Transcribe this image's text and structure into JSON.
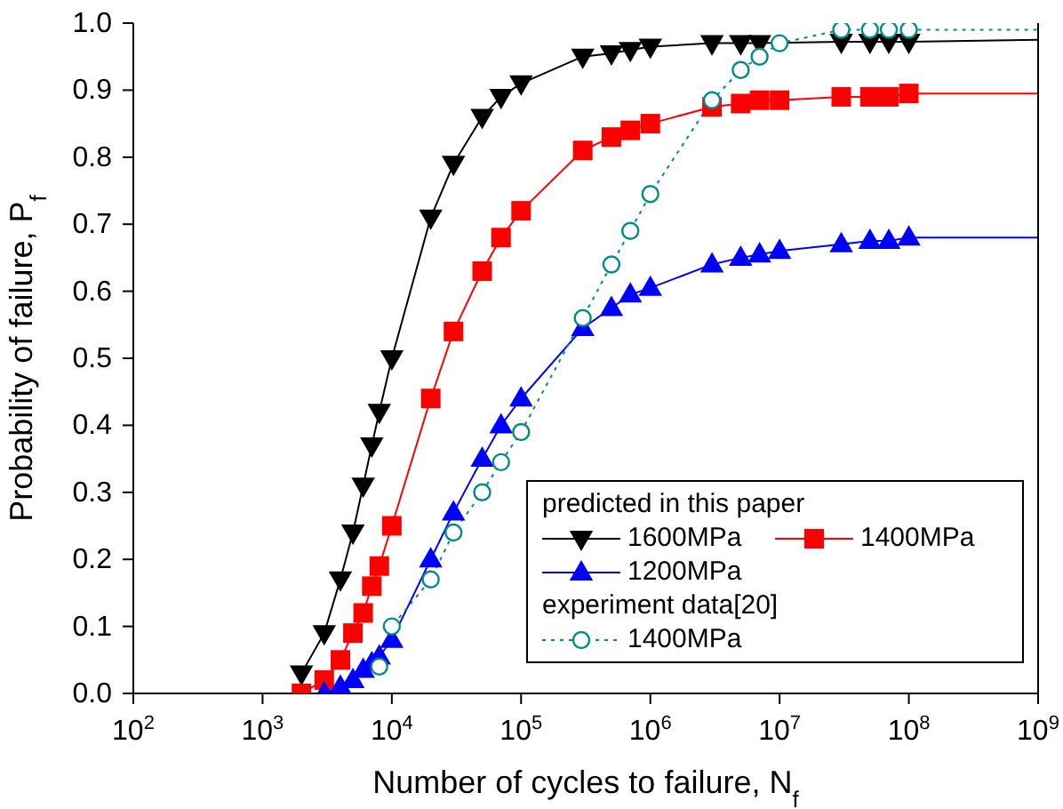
{
  "chart_data": {
    "type": "line",
    "xlabel": "Number of cycles to failure, N$_{f}$",
    "ylabel": "Probability of failure, P$_{f}$",
    "log": "x",
    "xlim": [
      100,
      1000000000
    ],
    "xticks": [
      {
        "value": 100,
        "label": "10$^{2}$"
      },
      {
        "value": 1000,
        "label": "10$^{3}$"
      },
      {
        "value": 10000,
        "label": "10$^{4}$"
      },
      {
        "value": 100000,
        "label": "10$^{5}$"
      },
      {
        "value": 1000000,
        "label": "10$^{6}$"
      },
      {
        "value": 10000000,
        "label": "10$^{7}$"
      },
      {
        "value": 100000000,
        "label": "10$^{8}$"
      },
      {
        "value": 1000000000,
        "label": "10$^{9}$"
      }
    ],
    "ylim": [
      0,
      1
    ],
    "yticks": [
      {
        "value": 0,
        "label": "0.0"
      },
      {
        "value": 0.1,
        "label": "0.1"
      },
      {
        "value": 0.2,
        "label": "0.2"
      },
      {
        "value": 0.3,
        "label": "0.3"
      },
      {
        "value": 0.4,
        "label": "0.4"
      },
      {
        "value": 0.5,
        "label": "0.5"
      },
      {
        "value": 0.6,
        "label": "0.6"
      },
      {
        "value": 0.7,
        "label": "0.7"
      },
      {
        "value": 0.8,
        "label": "0.8"
      },
      {
        "value": 0.9,
        "label": "0.9"
      },
      {
        "value": 1,
        "label": "1.0"
      }
    ],
    "grid": false,
    "legend": "bottom right",
    "legend_title": [
      "predicted in this paper",
      "experiment data[20]"
    ],
    "series": [
      {
        "name": "1600MPa",
        "color": "#000000",
        "marker": "triangle-down",
        "line_style": "solid",
        "x": [
          2000,
          3000,
          4000,
          5000,
          6000,
          7000,
          8000,
          10000,
          20000,
          30000,
          50000,
          70000,
          100000,
          300000,
          500000,
          700000,
          1000000,
          3000000,
          5000000,
          7000000,
          10000000,
          30000000,
          50000000,
          70000000,
          100000000
        ],
        "values": [
          0.03,
          0.09,
          0.17,
          0.24,
          0.31,
          0.37,
          0.42,
          0.5,
          0.71,
          0.79,
          0.86,
          0.89,
          0.91,
          0.95,
          0.955,
          0.96,
          0.965,
          0.97,
          0.97,
          0.97,
          null,
          0.972,
          0.972,
          0.972,
          0.972
        ]
      },
      {
        "name": "1400MPa",
        "color": "#ff0000",
        "marker": "square",
        "line_style": "solid",
        "x": [
          2000,
          3000,
          4000,
          5000,
          6000,
          7000,
          8000,
          10000,
          20000,
          30000,
          50000,
          70000,
          100000,
          300000,
          500000,
          700000,
          1000000,
          3000000,
          5000000,
          7000000,
          10000000,
          30000000,
          50000000,
          70000000,
          100000000
        ],
        "values": [
          0,
          0.02,
          0.05,
          0.09,
          0.12,
          0.16,
          0.19,
          0.25,
          0.44,
          0.54,
          0.63,
          0.68,
          0.72,
          0.81,
          0.83,
          0.84,
          0.85,
          0.875,
          0.88,
          0.885,
          0.885,
          0.89,
          0.89,
          0.89,
          0.895
        ]
      },
      {
        "name": "1200MPa",
        "color": "#0000ff",
        "marker": "triangle",
        "line_style": "solid",
        "x": [
          3000,
          4000,
          5000,
          6000,
          7000,
          8000,
          10000,
          20000,
          30000,
          50000,
          70000,
          100000,
          300000,
          500000,
          700000,
          1000000,
          3000000,
          5000000,
          7000000,
          10000000,
          30000000,
          50000000,
          70000000,
          100000000
        ],
        "values": [
          0,
          0.01,
          0.02,
          0.035,
          0.045,
          0.055,
          0.08,
          0.2,
          0.27,
          0.35,
          0.4,
          0.44,
          0.545,
          0.575,
          0.595,
          0.605,
          0.64,
          0.65,
          0.655,
          0.66,
          0.67,
          0.675,
          0.675,
          0.68
        ]
      },
      {
        "name": "1400MPa",
        "color": "#008b8b",
        "marker": "circle",
        "line_style": "dotted",
        "x": [
          8000,
          10000,
          20000,
          30000,
          50000,
          70000,
          100000,
          300000,
          500000,
          700000,
          1000000,
          3000000,
          5000000,
          7000000,
          10000000,
          30000000,
          50000000,
          70000000,
          100000000
        ],
        "values": [
          0.04,
          0.1,
          0.17,
          0.24,
          0.3,
          0.345,
          0.39,
          0.56,
          0.64,
          0.69,
          0.745,
          0.885,
          0.93,
          0.95,
          0.97,
          0.99,
          0.99,
          0.99,
          0.99
        ]
      },
      {
        "color": "#000000",
        "marker": "none",
        "line_style": "solid",
        "x": [
          100000000,
          1000000000
        ],
        "values": [
          0.972,
          0.975
        ]
      },
      {
        "color": "#ff0000",
        "marker": "none",
        "line_style": "solid",
        "x": [
          100000000,
          1000000000
        ],
        "values": [
          0.895,
          0.895
        ]
      },
      {
        "color": "#0000ff",
        "marker": "none",
        "line_style": "solid",
        "x": [
          100000000,
          1000000000
        ],
        "values": [
          0.68,
          0.68
        ]
      },
      {
        "color": "#008b8b",
        "marker": "none",
        "line_style": "dotted",
        "x": [
          100000000,
          1000000000
        ],
        "values": [
          0.99,
          0.99
        ]
      }
    ]
  }
}
